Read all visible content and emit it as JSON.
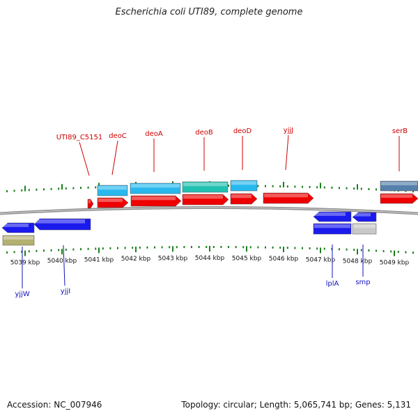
{
  "title": "Escherichia coli UTI89, complete genome",
  "footer": {
    "accession": "Accession: NC_007946",
    "topology": "Topology: circular; Length: 5,065,741 bp; Genes: 5,131"
  },
  "colors": {
    "backbone": "#8f8f8f",
    "tick": "#1c7f1c",
    "label_top": "#cc0000",
    "label_bottom": "#1010bb",
    "cds_red": "#ee0000",
    "blue": "#1a1aee",
    "light_blue": "#28b8ee",
    "teal": "#22c0b0",
    "steel": "#5580aa",
    "olive": "#b4b070",
    "gray": "#c8c8c8"
  },
  "scale": {
    "ticks": [
      {
        "label": "5039 kbp"
      },
      {
        "label": "5040 kbp"
      },
      {
        "label": "5041 kbp"
      },
      {
        "label": "5042 kbp"
      },
      {
        "label": "5043 kbp"
      },
      {
        "label": "5044 kbp"
      },
      {
        "label": "5045 kbp"
      },
      {
        "label": "5046 kbp"
      },
      {
        "label": "5047 kbp"
      },
      {
        "label": "5048 kbp"
      },
      {
        "label": "5049 kbp"
      }
    ]
  },
  "top_labels": [
    "UTI89_C5151",
    "deoC",
    "deoA",
    "deoB",
    "deoD",
    "yjjJ",
    "serB"
  ],
  "bottom_labels": [
    "yjjW",
    "yjjI",
    "lplA",
    "smp"
  ]
}
